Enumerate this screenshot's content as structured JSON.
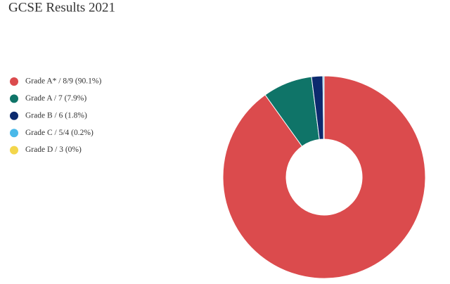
{
  "chart_data": {
    "type": "donut",
    "title": "GCSE Results 2021",
    "categories": [
      "Grade A* / 8/9 (90.1%)",
      "Grade A / 7 (7.9%)",
      "Grade B / 6 (1.8%)",
      "Grade C / 5/4 (0.2%)",
      "Grade D / 3 (0%)"
    ],
    "values": [
      90.1,
      7.9,
      1.8,
      0.2,
      0
    ],
    "colors": [
      "#db4b4d",
      "#0f7468",
      "#0c2a6e",
      "#4ab9e9",
      "#f3d64b"
    ],
    "legend": "left"
  }
}
